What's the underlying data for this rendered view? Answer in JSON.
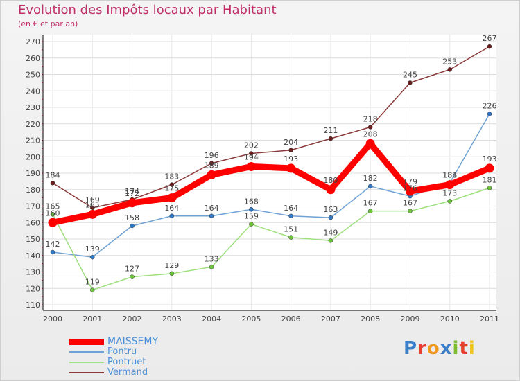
{
  "chart_data": {
    "type": "line",
    "title": "Evolution des Impôts locaux par Habitant",
    "subtitle": "(en € et par an)",
    "x": [
      "2000",
      "2001",
      "2002",
      "2003",
      "2004",
      "2005",
      "2006",
      "2007",
      "2008",
      "2009",
      "2010",
      "2011"
    ],
    "ylim": [
      110,
      270
    ],
    "yticks": [
      110,
      120,
      130,
      140,
      150,
      160,
      170,
      180,
      190,
      200,
      210,
      220,
      230,
      240,
      250,
      260,
      270
    ],
    "ytick_labels": [
      "110",
      "120",
      "130",
      "140",
      "150",
      "160",
      "170",
      "180",
      "190",
      "200",
      "210",
      "220",
      "230",
      "240",
      "250",
      "260",
      "270"
    ],
    "grid": true,
    "legend_position": "bottom-left",
    "series": [
      {
        "name": "MAISSEMY",
        "color": "#ff0000",
        "marker_color": "#ff0000",
        "emphasis": true,
        "values": [
          160,
          165,
          172,
          175,
          189,
          194,
          193,
          180,
          208,
          179,
          183,
          193
        ],
        "labels": [
          "160",
          "165",
          "172",
          "175",
          "189",
          "194",
          "193",
          "180",
          "208",
          "179",
          "183",
          "193"
        ]
      },
      {
        "name": "Pontru",
        "color": "#6fa2d4",
        "marker_color": "#2f78c4",
        "values": [
          142,
          139,
          158,
          164,
          164,
          168,
          164,
          163,
          182,
          176,
          184,
          226
        ],
        "labels": [
          "142",
          "139",
          "158",
          "164",
          "164",
          "168",
          "164",
          "163",
          "182",
          "176",
          "184",
          "226"
        ]
      },
      {
        "name": "Pontruet",
        "color": "#9ee07e",
        "marker_color": "#6cc53a",
        "values": [
          165,
          119,
          127,
          129,
          133,
          159,
          151,
          149,
          167,
          167,
          173,
          181
        ],
        "labels": [
          "165",
          "119",
          "127",
          "129",
          "133",
          "159",
          "151",
          "149",
          "167",
          "167",
          "173",
          "181"
        ]
      },
      {
        "name": "Vermand",
        "color": "#8b3a3a",
        "marker_color": "#6b1c1c",
        "values": [
          184,
          169,
          174,
          183,
          196,
          202,
          204,
          211,
          218,
          245,
          253,
          267
        ],
        "labels": [
          "184",
          "169",
          "174",
          "183",
          "196",
          "202",
          "204",
          "211",
          "218",
          "245",
          "253",
          "267"
        ]
      }
    ]
  },
  "logo": {
    "letters": [
      "P",
      "r",
      "o",
      "x",
      "i",
      "t",
      "i"
    ]
  }
}
